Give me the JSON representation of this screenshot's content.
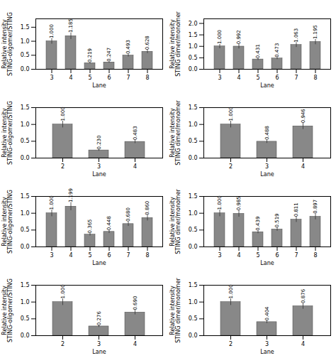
{
  "chart_data": [
    {
      "type": "bar",
      "xlabel": "Lane",
      "ylabel": "Relative intensity\nSTING-oligomer/STING",
      "categories": [
        "3",
        "4",
        "5",
        "6",
        "7",
        "8"
      ],
      "values": [
        1.0,
        1.185,
        0.219,
        0.247,
        0.493,
        0.628
      ],
      "value_labels": [
        "1.000",
        "1.185",
        "0.219",
        "0.247",
        "0.493",
        "0.628"
      ],
      "errors": [
        0.1,
        0.1185,
        0.0219,
        0.0247,
        0.0493,
        0.0628
      ],
      "color": "#888888",
      "data_labels": true,
      "ylim": [
        0.0,
        1.8
      ],
      "yticks": [
        {
          "value": 0,
          "label": "0.0"
        },
        {
          "value": 0.5,
          "label": "0.5"
        },
        {
          "value": 1,
          "label": "1.0"
        },
        {
          "value": 1.5,
          "label": "1.5"
        }
      ]
    },
    {
      "type": "bar",
      "xlabel": "Lane",
      "ylabel": "Relative intensity\nSTING dimer/monomer",
      "categories": [
        "3",
        "4",
        "5",
        "6",
        "7",
        "8"
      ],
      "values": [
        1.0,
        0.992,
        0.431,
        0.473,
        1.063,
        1.195
      ],
      "value_labels": [
        "1.000",
        "0.992",
        "0.431",
        "0.473",
        "1.063",
        "1.195"
      ],
      "errors": [
        0.1,
        0.0992,
        0.0431,
        0.0473,
        0.1063,
        0.1195
      ],
      "color": "#888888",
      "data_labels": true,
      "ylim": [
        0.0,
        2.2
      ],
      "yticks": [
        {
          "value": 0,
          "label": "0.0"
        },
        {
          "value": 0.5,
          "label": "0.5"
        },
        {
          "value": 1,
          "label": "1.0"
        },
        {
          "value": 1.5,
          "label": "1.5"
        },
        {
          "value": 2,
          "label": "2.0"
        }
      ]
    },
    {
      "type": "bar",
      "xlabel": "Lane",
      "ylabel": "Relative intensity\nSTING-oligomer/STING",
      "categories": [
        "2",
        "3",
        "4"
      ],
      "values": [
        1.0,
        0.23,
        0.483
      ],
      "value_labels": [
        "1.000",
        "0.230",
        "0.483"
      ],
      "errors": [
        0.1,
        0.023,
        0.0483
      ],
      "color": "#888888",
      "data_labels": true,
      "ylim": [
        0.0,
        1.5
      ],
      "yticks": [
        {
          "value": 0,
          "label": "0.0"
        },
        {
          "value": 0.5,
          "label": "0.5"
        },
        {
          "value": 1,
          "label": "1.0"
        },
        {
          "value": 1.5,
          "label": "1.5"
        }
      ]
    },
    {
      "type": "bar",
      "xlabel": "Lane",
      "ylabel": "Relative intensity\nSTING dimer/monomer",
      "categories": [
        "2",
        "3",
        "4"
      ],
      "values": [
        1.0,
        0.488,
        0.946
      ],
      "value_labels": [
        "1.000",
        "0.488",
        "0.946"
      ],
      "errors": [
        0.1,
        0.0488,
        0.0946
      ],
      "color": "#888888",
      "data_labels": true,
      "ylim": [
        0.0,
        1.5
      ],
      "yticks": [
        {
          "value": 0,
          "label": "0.0"
        },
        {
          "value": 0.5,
          "label": "0.5"
        },
        {
          "value": 1,
          "label": "1.0"
        },
        {
          "value": 1.5,
          "label": "1.5"
        }
      ]
    },
    {
      "type": "bar",
      "xlabel": "Lane",
      "ylabel": "Relative intensity\nSTING-oligomer/STING",
      "categories": [
        "3",
        "4",
        "5",
        "6",
        "7",
        "8"
      ],
      "values": [
        1.0,
        1.199,
        0.365,
        0.448,
        0.68,
        0.86
      ],
      "value_labels": [
        "1.000",
        "1.199",
        "0.365",
        "0.448",
        "0.680",
        "0.860"
      ],
      "errors": [
        0.1,
        0.1199,
        0.0365,
        0.0448,
        0.068,
        0.086
      ],
      "color": "#888888",
      "data_labels": true,
      "ylim": [
        0.0,
        1.5
      ],
      "yticks": [
        {
          "value": 0,
          "label": "0.0"
        },
        {
          "value": 0.5,
          "label": "0.5"
        },
        {
          "value": 1,
          "label": "1.0"
        },
        {
          "value": 1.5,
          "label": "1.5"
        }
      ]
    },
    {
      "type": "bar",
      "xlabel": "Lane",
      "ylabel": "Relative intensity\nSTING dimer/monomer",
      "categories": [
        "3",
        "4",
        "5",
        "6",
        "7",
        "8"
      ],
      "values": [
        1.0,
        0.985,
        0.439,
        0.519,
        0.811,
        0.897
      ],
      "value_labels": [
        "1.000",
        "0.985",
        "0.439",
        "0.519",
        "0.811",
        "0.897"
      ],
      "errors": [
        0.1,
        0.0985,
        0.0439,
        0.0519,
        0.0811,
        0.0897
      ],
      "color": "#888888",
      "data_labels": true,
      "ylim": [
        0.0,
        1.5
      ],
      "yticks": [
        {
          "value": 0,
          "label": "0.0"
        },
        {
          "value": 0.5,
          "label": "0.5"
        },
        {
          "value": 1,
          "label": "1.0"
        },
        {
          "value": 1.5,
          "label": "1.5"
        }
      ]
    },
    {
      "type": "bar",
      "xlabel": "Lane",
      "ylabel": "Relative intensity\nSTING-oligomer/STING",
      "categories": [
        "2",
        "3",
        "4"
      ],
      "values": [
        1.0,
        0.276,
        0.69
      ],
      "value_labels": [
        "1.000",
        "0.276",
        "0.690"
      ],
      "errors": [
        0.1,
        0.0276,
        0.069
      ],
      "color": "#888888",
      "data_labels": true,
      "ylim": [
        0.0,
        1.5
      ],
      "yticks": [
        {
          "value": 0,
          "label": "0.0"
        },
        {
          "value": 0.5,
          "label": "0.5"
        },
        {
          "value": 1,
          "label": "1.0"
        },
        {
          "value": 1.5,
          "label": "1.5"
        }
      ]
    },
    {
      "type": "bar",
      "xlabel": "Lane",
      "ylabel": "Relative intensity\nSTING dimer/monomer",
      "categories": [
        "2",
        "3",
        "4"
      ],
      "values": [
        1.0,
        0.404,
        0.876
      ],
      "value_labels": [
        "1.000",
        "0.404",
        "0.876"
      ],
      "errors": [
        0.1,
        0.0404,
        0.0876
      ],
      "color": "#888888",
      "data_labels": true,
      "ylim": [
        0.0,
        1.5
      ],
      "yticks": [
        {
          "value": 0,
          "label": "0.0"
        },
        {
          "value": 0.5,
          "label": "0.5"
        },
        {
          "value": 1,
          "label": "1.0"
        },
        {
          "value": 1.5,
          "label": "1.5"
        }
      ]
    }
  ]
}
